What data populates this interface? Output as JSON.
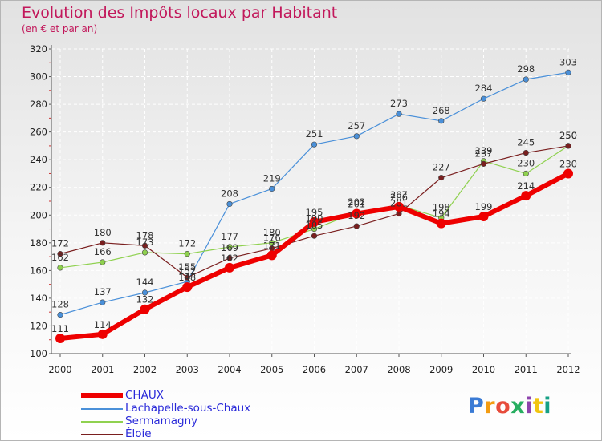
{
  "chart_data": {
    "type": "line",
    "title": "Evolution des Impôts locaux par Habitant",
    "subtitle": "(en € et par an)",
    "x": [
      "2000",
      "2001",
      "2002",
      "2003",
      "2004",
      "2005",
      "2006",
      "2007",
      "2008",
      "2009",
      "2010",
      "2011",
      "2012"
    ],
    "ylim": [
      100,
      320
    ],
    "yticks": [
      100,
      120,
      140,
      160,
      180,
      200,
      220,
      240,
      260,
      280,
      300,
      320
    ],
    "series": [
      {
        "name": "Lachapelle-sous-Chaux",
        "color": "#4a90d9",
        "width": 1.2,
        "values": [
          128,
          137,
          144,
          152,
          208,
          219,
          251,
          257,
          273,
          268,
          284,
          298,
          303
        ]
      },
      {
        "name": "Sermamagny",
        "color": "#8fd14f",
        "width": 1.2,
        "values": [
          162,
          166,
          173,
          172,
          177,
          180,
          190,
          202,
          207,
          198,
          239,
          230,
          250
        ]
      },
      {
        "name": "Éloie",
        "color": "#7a1f1f",
        "width": 1.2,
        "values": [
          172,
          180,
          178,
          155,
          169,
          176,
          185,
          192,
          201,
          227,
          237,
          245,
          250
        ]
      },
      {
        "name": "CHAUX",
        "color": "#ee0000",
        "width": 6,
        "values": [
          111,
          114,
          132,
          148,
          162,
          171,
          195,
          201,
          206,
          194,
          199,
          214,
          230
        ]
      }
    ]
  },
  "legend": [
    "CHAUX",
    "Lachapelle-sous-Chaux",
    "Sermamagny",
    "Éloie"
  ],
  "logo_text": "Proxiti"
}
